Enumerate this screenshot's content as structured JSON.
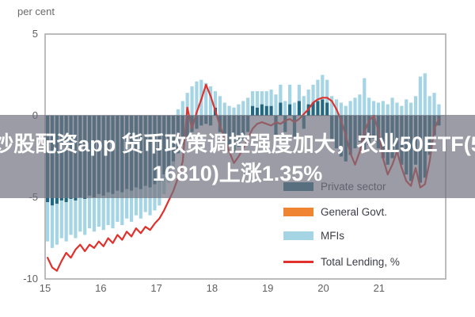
{
  "page": {
    "unit_label": "per cent"
  },
  "overlay": {
    "line1": "炒股配资app 货币政策调控强度加大，农业50ETF(5",
    "line2": "16810)上涨1.35%",
    "full_text": "炒股配资app 货币政策调控强度加大，农业50ETF(516810)上涨1.35%",
    "band_color": "rgba(112,114,127,0.70)",
    "text_color": "#ffffff"
  },
  "legend": {
    "items": [
      {
        "label": "Private sector",
        "color": "#206884",
        "swatch": "bar"
      },
      {
        "label": "General Govt.",
        "color": "#ef8532",
        "swatch": "bar"
      },
      {
        "label": "MFIs",
        "color": "#a5d5e4",
        "swatch": "bar"
      },
      {
        "label": "Total Lending, %",
        "color": "#e0312d",
        "swatch": "line"
      }
    ]
  },
  "chart_data": {
    "type": "bar",
    "subtype": "stacked-bars-with-line",
    "title": "",
    "ylabel": "per cent",
    "grid": false,
    "legend_position": "inside-bottom-right",
    "x_axis": {
      "ticks": [
        15,
        16,
        17,
        18,
        19,
        20,
        21
      ],
      "start_year": 2015,
      "frequency": "monthly"
    },
    "y_axis": {
      "ticks": [
        5,
        0,
        -5,
        -10
      ],
      "range": [
        -10,
        5
      ]
    },
    "axis_color": "#a6a6a6",
    "series": [
      {
        "name": "Private sector",
        "type": "bar",
        "color": "#206884",
        "values": [
          -5.3,
          -5.5,
          -5.4,
          -5.2,
          -5.3,
          -5.1,
          -5.2,
          -5.0,
          -5.1,
          -4.9,
          -5.0,
          -4.8,
          -4.9,
          -4.7,
          -4.8,
          -4.6,
          -4.7,
          -4.5,
          -4.6,
          -4.4,
          -4.5,
          -4.3,
          -4.4,
          -4.2,
          -4.0,
          -3.6,
          -3.2,
          -2.8,
          -2.3,
          -1.8,
          -1.3,
          -1.0,
          -0.8,
          -0.6,
          -0.5,
          -0.6,
          0.5,
          -1.0,
          -1.4,
          -1.8,
          -2.2,
          -1.9,
          -1.5,
          -1.0,
          0.6,
          0.5,
          0.7,
          0.6,
          0.6,
          -1.2,
          0.8,
          -1.0,
          0.7,
          -1.4,
          0.9,
          -0.8,
          0.7,
          0.8,
          0.9,
          1.0,
          0.8,
          -1.5,
          -2.0,
          -2.5,
          -2.8,
          -2.4,
          -2.0,
          -1.6,
          -2.2,
          -1.8,
          -1.4,
          -2.0,
          -2.6,
          -3.0,
          -2.6,
          -2.4,
          -3.0,
          -3.6,
          -4.0,
          -3.0,
          -4.1,
          -3.8,
          -2.4,
          -1.2,
          -0.6
        ]
      },
      {
        "name": "General Govt.",
        "type": "bar",
        "color": "#ef8532",
        "values": [
          0,
          0,
          0,
          0,
          0,
          0,
          0,
          0,
          0,
          0,
          0,
          0,
          0,
          0,
          0,
          0,
          0,
          0,
          0,
          0,
          0,
          0,
          0,
          0,
          0,
          0,
          0,
          0,
          0,
          0,
          0,
          0,
          0,
          0,
          0,
          0,
          0,
          0,
          0,
          0,
          0,
          0,
          0,
          0,
          0,
          0,
          0,
          0,
          0,
          0,
          0,
          0,
          0,
          0,
          0,
          0,
          0,
          0,
          0,
          0,
          0,
          0,
          0,
          0,
          0,
          0,
          0,
          0,
          0,
          0,
          0,
          0,
          0,
          0,
          0,
          0,
          0,
          0,
          0,
          0,
          0,
          0,
          0,
          0,
          0
        ]
      },
      {
        "name": "MFIs",
        "type": "bar",
        "color": "#a5d5e4",
        "values": [
          -2.4,
          -2.6,
          -2.5,
          -2.3,
          -2.4,
          -2.2,
          -2.3,
          -2.1,
          -2.2,
          -2.0,
          -2.1,
          -2.0,
          -2.1,
          -2.0,
          -2.1,
          -1.9,
          -2.0,
          -1.8,
          -1.9,
          -1.7,
          -1.8,
          -1.6,
          -1.7,
          -1.6,
          -1.5,
          -1.2,
          -0.9,
          -0.5,
          0.4,
          0.9,
          1.4,
          1.8,
          2.1,
          2.2,
          2.0,
          1.8,
          1.0,
          1.2,
          0.8,
          0.6,
          0.5,
          0.7,
          0.9,
          1.1,
          0.9,
          1.0,
          0.8,
          0.9,
          1.0,
          1.3,
          1.1,
          0.9,
          1.2,
          0.8,
          1.0,
          1.2,
          0.9,
          1.1,
          1.3,
          1.5,
          1.4,
          1.2,
          1.0,
          0.8,
          0.6,
          0.9,
          1.1,
          1.3,
          2.3,
          1.1,
          0.9,
          0.8,
          0.9,
          0.7,
          1.1,
          0.8,
          0.6,
          1.0,
          0.8,
          1.2,
          2.4,
          2.6,
          1.2,
          1.4,
          0.7
        ]
      },
      {
        "name": "Total Lending, %",
        "type": "line",
        "color": "#e0312d",
        "values": [
          -8.7,
          -9.3,
          -9.5,
          -8.9,
          -8.4,
          -8.7,
          -8.2,
          -7.9,
          -8.3,
          -7.9,
          -8.1,
          -7.7,
          -8.0,
          -7.5,
          -7.8,
          -7.3,
          -7.6,
          -7.1,
          -7.4,
          -6.9,
          -7.2,
          -6.8,
          -7.0,
          -6.6,
          -6.3,
          -5.8,
          -5.2,
          -4.6,
          -3.8,
          -2.8,
          0.5,
          -0.8,
          0.2,
          1.0,
          1.9,
          1.2,
          0.3,
          -0.6,
          -1.4,
          -2.2,
          -2.9,
          -2.5,
          -2.0,
          -1.4,
          -0.8,
          -0.5,
          -0.4,
          -0.5,
          -0.6,
          -0.4,
          -0.5,
          -0.3,
          -0.2,
          -0.4,
          -0.2,
          0.1,
          0.4,
          0.8,
          1.0,
          1.1,
          1.1,
          0.9,
          0.4,
          -0.3,
          -1.2,
          -2.3,
          -3.0,
          -2.2,
          -1.0,
          -0.3,
          0.0,
          -0.9,
          -2.6,
          -3.6,
          -3.0,
          -2.2,
          -3.2,
          -4.0,
          -4.3,
          -3.2,
          -4.4,
          -4.2,
          -2.8,
          -0.8,
          -0.2
        ]
      }
    ]
  }
}
